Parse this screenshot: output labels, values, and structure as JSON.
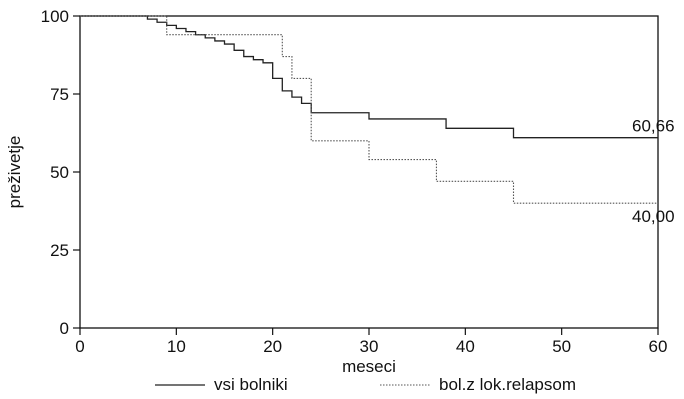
{
  "chart_data": {
    "type": "line",
    "title": "",
    "xlabel": "meseci",
    "ylabel": "preživetje",
    "xlim": [
      0,
      60
    ],
    "ylim": [
      0,
      100
    ],
    "xticks": [
      0,
      10,
      20,
      30,
      40,
      50,
      60
    ],
    "yticks": [
      0,
      25,
      50,
      75,
      100
    ],
    "grid": false,
    "legend_position": "bottom",
    "series": [
      {
        "name": "vsi bolniki",
        "style": "solid",
        "color": "#222222",
        "step": true,
        "end_label": "60,66",
        "x": [
          0,
          7,
          8,
          9,
          10,
          11,
          12,
          13,
          14,
          15,
          16,
          17,
          18,
          19,
          20,
          21,
          22,
          23,
          24,
          29,
          30,
          38,
          45,
          60
        ],
        "y": [
          100,
          99,
          98,
          97,
          96,
          95,
          94,
          93,
          92,
          91,
          89,
          87,
          86,
          85,
          80,
          76,
          74,
          72,
          69,
          69,
          67,
          64,
          61,
          61
        ]
      },
      {
        "name": "bol.z lok.relapsom",
        "style": "dotted",
        "color": "#555555",
        "step": true,
        "end_label": "40,00",
        "x": [
          0,
          8,
          9,
          19,
          21,
          22,
          23,
          24,
          29,
          30,
          37,
          45,
          60
        ],
        "y": [
          100,
          100,
          94,
          94,
          87,
          80,
          80,
          60,
          60,
          54,
          47,
          40,
          40
        ]
      }
    ]
  }
}
